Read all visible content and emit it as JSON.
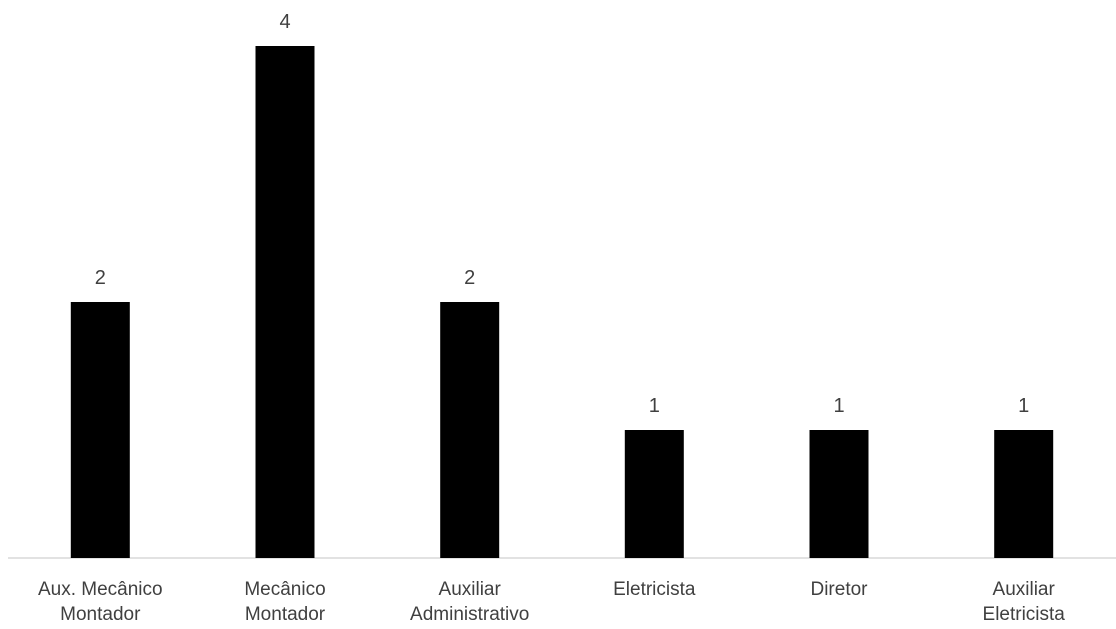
{
  "chart_data": {
    "type": "bar",
    "categories": [
      [
        "Aux. Mecânico",
        "Montador"
      ],
      [
        "Mecânico",
        "Montador"
      ],
      [
        "Auxiliar",
        "Administrativo"
      ],
      [
        "Eletricista"
      ],
      [
        "Diretor"
      ],
      [
        "Auxiliar",
        "Eletricista"
      ]
    ],
    "values": [
      2,
      4,
      2,
      1,
      1,
      1
    ],
    "data_labels": [
      "2",
      "4",
      "2",
      "1",
      "1",
      "1"
    ],
    "title": "",
    "xlabel": "",
    "ylabel": "",
    "ylim": [
      0,
      4
    ],
    "grid": false,
    "legend": "none",
    "bar_color": "#000000",
    "label_color": "#404040",
    "axis_color": "#d9d9d9"
  }
}
